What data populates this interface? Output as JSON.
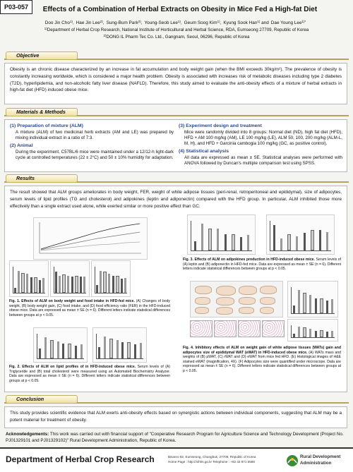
{
  "header": {
    "poster_id": "P03-057",
    "title": "Effects of a Combination of Herbal Extracts on Obesity in Mice Fed a High-fat Diet",
    "authors": [
      {
        "name": "Doo Jin Cho",
        "sup": "1)",
        "sep": ","
      },
      {
        "name": "Hae Jin Lee",
        "sup": "2)",
        "sep": ","
      },
      {
        "name": "Sung-Bum Park",
        "sup": "2)",
        "sep": ","
      },
      {
        "name": "Young-Seob Lee",
        "sup": "1)",
        "sep": ","
      },
      {
        "name": "Geum Soog Kim",
        "sup": "1)",
        "sep": ","
      },
      {
        "name": "Kyung Sook Han",
        "sup": "1)",
        "sep": " and"
      },
      {
        "name": "Dae Young Lee",
        "sup": "1)*",
        "sep": ""
      }
    ],
    "affiliations": [
      {
        "sup": "1)",
        "text": "Department of Herbal Crop Research, National Institute of Horticultural and Herbal Science, RDA, Eumseong 27709, Republic of Korea"
      },
      {
        "sup": "2)",
        "text": "DONG IL Pharm Tec Co. Ltd., Gangnam, Seoul, 06296, Republic of Korea"
      }
    ]
  },
  "objective": {
    "heading": "Objective",
    "text": "Obesity is an chronic disease characterized by an increase in fat accumulation and body weight gain (when the BMI exceeds 30kg/m²). The prevalence of obesity is constantly increasing worldwide, which is considered a major health problem. Obesity is associated with increases risk of metabolic diseases including type 2 diabetes (T2D), hyperlipidemia, and non-alcoholic fatty liver disease (NAFLD). Therefore, this study aimed to evaluate the anti-obesity effects of a mixture of herbal extracts in high-fat diet (HFD) induced obese mice."
  },
  "methods": {
    "heading": "Materials & Methods",
    "items": [
      {
        "title": "(1) Preparation of mixture (ALM)",
        "text": "A mixture (ALM) of two medicinal herb extracts (AM and LE) was prepared by mixing individual extract in a ratio of 7:3."
      },
      {
        "title": "(2) Animal",
        "text": "During the experiment, C57BL/6 mice were maintained under a 12/12-h light-dark cycle at controlled temperatures (22 ± 2°C) and 50 ± 10% humidity for adaptation."
      },
      {
        "title": "(3) Experiment design and treatment",
        "text": "Mice were randomly divided into 8 groups: Normal diet (ND), high fat diet (HFD), HFD + AM 100 mg/kg (AM), LE 100 mg/kg (LE), ALM 50, 100, 200 mg/kg (ALM-L, M, H), and HFD + Garcinia cambogia 100 mg/kg (GC, as positive control)."
      },
      {
        "title": "(4) Statistical analysis",
        "text": "All data are expressed as mean ± SE. Statistical analyses were performed with ANOVA followed by Duncan's multiple comparison test using SPSS."
      }
    ]
  },
  "results": {
    "heading": "Results",
    "text": "The result showed that ALM groups ameliorates in body weight, FER, weight of white adipose tissues (peri-renal, retroperitoneal and epididymal), size of adipocytes, serum levels of lipid profiles (TG and cholesterol) and adipokines (leptin and adiponectin) compared with the HFD group. In particular, ALM inhibited those more effectively than a single extract used alone, while exerted similar or more positive effect than GC.",
    "figures": [
      {
        "title": "Fig. 1. Effects of ALM on body weight and food intake in HFD-fed mice.",
        "text": "(A) Changes of body weight, (B) body weight gain, (C) food intake, and (D) food efficiency ratio (FER) in the HFD-induced obese mice. Data are expressed as mean ± SE (n = 6). Different letters indicate statistical differences between groups at p < 0.05."
      },
      {
        "title": "Fig. 2. Effects of ALM on lipid profiles of in HFD-induced obese mice.",
        "text": "Serum levels of (A) Triglyceride and (B) total cholesterol were measured using an Automated Biochemistry Analyzer. Data are expressed as mean ± SE (n = 6). Different letters indicate statistical differences between groups at p < 0.05."
      },
      {
        "title": "Fig. 3. Effects of ALM on adipokines production in HFD-induced obese mice.",
        "text": "Serum levels of (A) leptin and (B) adiponectin in HFD-fed mice. Data are expressed as mean ± SE (n = 6). Different letters indicate statistical differences between groups at p < 0.05."
      },
      {
        "title": "Fig. 4. Inhibitory effects of ALM on weight gain of white adipose tissues (WATs) gain and adipocytes size of epididymal WAT (eWAT) in HFD-induced obese mice.",
        "text": "(A) WATs mass and weights of (B) pWAT, (C) rWAT and (D) eWAT from mice fed HFD. (E) Histological images of H&E stained eWAT (magnification, 4X). (F) Adipocytes size were quantified under microscope. Data are expressed as mean ± SE (n = 6). Different letters indicate statistical differences between groups at p < 0.05."
      }
    ]
  },
  "conclusion": {
    "heading": "Conclusion",
    "text": "This study provides scientific evidence that ALM exerts anti-obesity effects based on synergistic actions between individual components, suggesting that ALM may be a potent material for treatment of obesity."
  },
  "acknowledgements": {
    "label": "Acknowledgements:",
    "text": "This work was carried out with financial support of \"Cooperative Research Program for Agriculture Science and Technology Development (Project No. PJ01329101 and PJ01329102)\" Rural Development Administration, Republic of Korea."
  },
  "footer": {
    "department": "Department of Herbal Crop Research",
    "address": "Bisanro 92, Eumseong, Chungbuk, 27709, Republic of Korea",
    "contact": "Home Page : http://nihhs.go.kr   Telephone : +82 43 871 5588",
    "organization": "Rural Development Administration"
  }
}
